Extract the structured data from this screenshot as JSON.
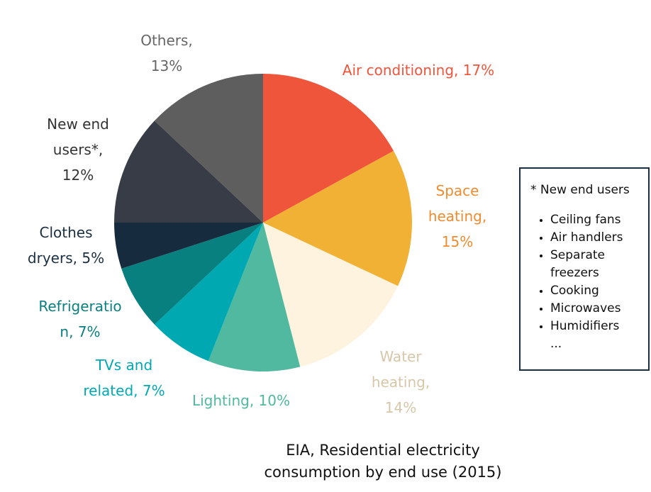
{
  "chart_data": {
    "type": "pie",
    "categories": [
      "Air conditioning,",
      "Space heating,",
      "Water heating,",
      "Lighting,",
      "TVs and related,",
      "Refrigeration,",
      "Clothes dryers,",
      "New end users*,",
      "Others,"
    ],
    "values": [
      17,
      15,
      14,
      10,
      7,
      7,
      5,
      12,
      13
    ],
    "value_labels": [
      "17%",
      "15%",
      "14%",
      "10%",
      "7%",
      "7%",
      "5%",
      "12%",
      "13%"
    ],
    "colors": [
      "#ee553b",
      "#f0b135",
      "#fdf3de",
      "#50b9a0",
      "#00a9b2",
      "#08807f",
      "#162c3e",
      "#383c46",
      "#5e5e5e"
    ],
    "label_colors": [
      "#ee553b",
      "#f08b2f",
      "#d8c6a8",
      "#50b9a0",
      "#00a9b2",
      "#0b7f80",
      "#1b2f42",
      "#333333",
      "#666666"
    ],
    "note": "EIA, Residential electricity consumption by end use (2015)"
  },
  "legend_box": {
    "title": "* New end users",
    "items": [
      "Ceiling fans",
      "Air handlers",
      "Separate freezers",
      "Cooking",
      "Microwaves",
      "Humidifiers",
      "..."
    ]
  }
}
